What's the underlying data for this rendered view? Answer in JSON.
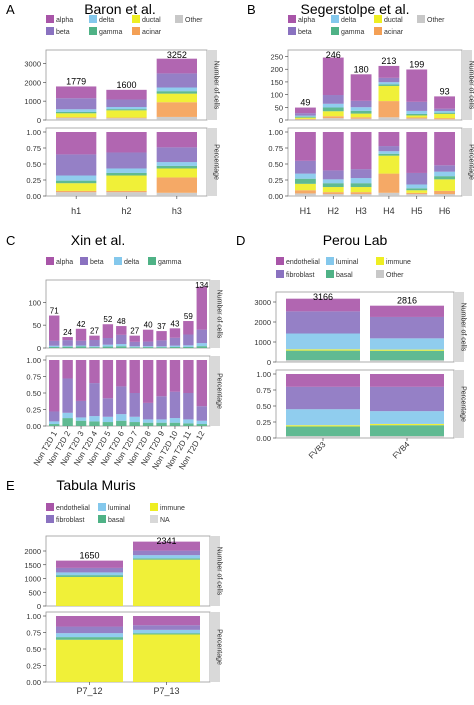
{
  "colors": {
    "alpha": "#a855a8",
    "beta": "#8a72c0",
    "delta": "#84c8ec",
    "gamma": "#4fb286",
    "ductal": "#eeee22",
    "acinar": "#f4a055",
    "other": "#c8c8c8",
    "endothelial": "#a855a8",
    "luminal": "#84c8ec",
    "immune": "#eeee22",
    "fibroblast": "#8a72c0",
    "basal": "#4fb286",
    "na": "#d8d8d8"
  },
  "strip_labels": {
    "count": "Number of cells",
    "percent": "Percentage"
  },
  "chart_data": [
    {
      "letter": "A",
      "type": "bar",
      "title": "Baron et al.",
      "categories": [
        "h1",
        "h2",
        "h3"
      ],
      "totals": [
        1779,
        1600,
        3252
      ],
      "legend": [
        {
          "label": "alpha",
          "key": "alpha"
        },
        {
          "label": "delta",
          "key": "delta"
        },
        {
          "label": "ductal",
          "key": "ductal"
        },
        {
          "label": "Other",
          "key": "other"
        },
        {
          "label": "beta",
          "key": "beta"
        },
        {
          "label": "gamma",
          "key": "gamma"
        },
        {
          "label": "acinar",
          "key": "acinar"
        }
      ],
      "stack_order": [
        "other",
        "acinar",
        "ductal",
        "gamma",
        "delta",
        "beta",
        "alpha"
      ],
      "fractions": [
        {
          "alpha": 0.35,
          "beta": 0.33,
          "delta": 0.08,
          "gamma": 0.04,
          "ductal": 0.12,
          "acinar": 0.02,
          "other": 0.06
        },
        {
          "alpha": 0.32,
          "beta": 0.25,
          "delta": 0.07,
          "gamma": 0.04,
          "ductal": 0.24,
          "acinar": 0.02,
          "other": 0.06
        },
        {
          "alpha": 0.24,
          "beta": 0.23,
          "delta": 0.06,
          "gamma": 0.04,
          "ductal": 0.14,
          "acinar": 0.24,
          "other": 0.05
        }
      ],
      "y_count": {
        "max": 3500,
        "ticks": [
          0,
          1000,
          2000,
          3000
        ]
      },
      "y_percent": {
        "ticks": [
          "0.00",
          "0.25",
          "0.50",
          "0.75",
          "1.00"
        ]
      }
    },
    {
      "letter": "B",
      "type": "bar",
      "title": "Segerstolpe et al.",
      "categories": [
        "H1",
        "H2",
        "H3",
        "H4",
        "H5",
        "H6"
      ],
      "totals": [
        49,
        246,
        180,
        213,
        199,
        93
      ],
      "legend": [
        {
          "label": "alpha",
          "key": "alpha"
        },
        {
          "label": "delta",
          "key": "delta"
        },
        {
          "label": "ductal",
          "key": "ductal"
        },
        {
          "label": "Other",
          "key": "other"
        },
        {
          "label": "beta",
          "key": "beta"
        },
        {
          "label": "gamma",
          "key": "gamma"
        },
        {
          "label": "acinar",
          "key": "acinar"
        }
      ],
      "stack_order": [
        "other",
        "acinar",
        "ductal",
        "gamma",
        "delta",
        "beta",
        "alpha"
      ],
      "fractions": [
        {
          "alpha": 0.45,
          "beta": 0.2,
          "delta": 0.08,
          "gamma": 0.08,
          "ductal": 0.1,
          "acinar": 0.05,
          "other": 0.04
        },
        {
          "alpha": 0.6,
          "beta": 0.14,
          "delta": 0.06,
          "gamma": 0.06,
          "ductal": 0.08,
          "acinar": 0.03,
          "other": 0.03
        },
        {
          "alpha": 0.58,
          "beta": 0.14,
          "delta": 0.08,
          "gamma": 0.06,
          "ductal": 0.08,
          "acinar": 0.03,
          "other": 0.03
        },
        {
          "alpha": 0.22,
          "beta": 0.08,
          "delta": 0.04,
          "gamma": 0.03,
          "ductal": 0.28,
          "acinar": 0.3,
          "other": 0.05
        },
        {
          "alpha": 0.64,
          "beta": 0.18,
          "delta": 0.06,
          "gamma": 0.03,
          "ductal": 0.04,
          "acinar": 0.02,
          "other": 0.03
        },
        {
          "alpha": 0.52,
          "beta": 0.1,
          "delta": 0.07,
          "gamma": 0.05,
          "ductal": 0.18,
          "acinar": 0.05,
          "other": 0.03
        }
      ],
      "y_count": {
        "max": 260,
        "ticks": [
          0,
          50,
          100,
          150,
          200,
          250
        ]
      },
      "y_percent": {
        "ticks": [
          "0.00",
          "0.25",
          "0.50",
          "0.75",
          "1.00"
        ]
      }
    },
    {
      "letter": "C",
      "type": "bar",
      "title": "Xin et al.",
      "categories": [
        "Non T2D 1",
        "Non T2D 2",
        "Non T2D 3",
        "Non T2D 4",
        "Non T2D 5",
        "Non T2D 6",
        "Non T2D 7",
        "Non T2D 8",
        "Non T2D 9",
        "Non T2D 10",
        "Non T2D 11",
        "Non T2D 12"
      ],
      "totals": [
        71,
        24,
        42,
        27,
        52,
        48,
        27,
        40,
        37,
        43,
        59,
        134
      ],
      "legend": [
        {
          "label": "alpha",
          "key": "alpha"
        },
        {
          "label": "beta",
          "key": "beta"
        },
        {
          "label": "delta",
          "key": "delta"
        },
        {
          "label": "gamma",
          "key": "gamma"
        }
      ],
      "stack_order": [
        "gamma",
        "delta",
        "beta",
        "alpha"
      ],
      "fractions": [
        {
          "alpha": 0.78,
          "beta": 0.15,
          "delta": 0.04,
          "gamma": 0.03
        },
        {
          "alpha": 0.28,
          "beta": 0.52,
          "delta": 0.08,
          "gamma": 0.12
        },
        {
          "alpha": 0.62,
          "beta": 0.25,
          "delta": 0.05,
          "gamma": 0.08
        },
        {
          "alpha": 0.35,
          "beta": 0.5,
          "delta": 0.08,
          "gamma": 0.07
        },
        {
          "alpha": 0.58,
          "beta": 0.28,
          "delta": 0.08,
          "gamma": 0.06
        },
        {
          "alpha": 0.4,
          "beta": 0.42,
          "delta": 0.1,
          "gamma": 0.08
        },
        {
          "alpha": 0.5,
          "beta": 0.36,
          "delta": 0.08,
          "gamma": 0.06
        },
        {
          "alpha": 0.65,
          "beta": 0.25,
          "delta": 0.05,
          "gamma": 0.05
        },
        {
          "alpha": 0.55,
          "beta": 0.35,
          "delta": 0.05,
          "gamma": 0.05
        },
        {
          "alpha": 0.48,
          "beta": 0.4,
          "delta": 0.07,
          "gamma": 0.05
        },
        {
          "alpha": 0.5,
          "beta": 0.4,
          "delta": 0.06,
          "gamma": 0.04
        },
        {
          "alpha": 0.7,
          "beta": 0.22,
          "delta": 0.05,
          "gamma": 0.03
        }
      ],
      "y_count": {
        "max": 140,
        "ticks": [
          0,
          50,
          100
        ]
      },
      "y_percent": {
        "ticks": [
          "0.00",
          "0.25",
          "0.50",
          "0.75",
          "1.00"
        ]
      }
    },
    {
      "letter": "D",
      "type": "bar",
      "title": "Perou Lab",
      "categories": [
        "FVB3",
        "FVB4"
      ],
      "totals": [
        3166,
        2816
      ],
      "legend": [
        {
          "label": "endothelial",
          "key": "endothelial"
        },
        {
          "label": "luminal",
          "key": "luminal"
        },
        {
          "label": "immune",
          "key": "immune"
        },
        {
          "label": "fibroblast",
          "key": "fibroblast"
        },
        {
          "label": "basal",
          "key": "basal"
        },
        {
          "label": "Other",
          "key": "other"
        }
      ],
      "stack_order": [
        "other",
        "basal",
        "immune",
        "luminal",
        "fibroblast",
        "endothelial"
      ],
      "fractions": [
        {
          "endothelial": 0.2,
          "fibroblast": 0.35,
          "luminal": 0.25,
          "immune": 0.02,
          "basal": 0.15,
          "other": 0.03
        },
        {
          "endothelial": 0.2,
          "fibroblast": 0.38,
          "luminal": 0.2,
          "immune": 0.02,
          "basal": 0.17,
          "other": 0.03
        }
      ],
      "y_count": {
        "max": 3300,
        "ticks": [
          0,
          1000,
          2000,
          3000
        ]
      },
      "y_percent": {
        "ticks": [
          "0.00",
          "0.25",
          "0.50",
          "0.75",
          "1.00"
        ]
      }
    },
    {
      "letter": "E",
      "type": "bar",
      "title": "Tabula Muris",
      "categories": [
        "P7_12",
        "P7_13"
      ],
      "totals": [
        1650,
        2341
      ],
      "legend": [
        {
          "label": "endothelial",
          "key": "endothelial"
        },
        {
          "label": "luminal",
          "key": "luminal"
        },
        {
          "label": "immune",
          "key": "immune"
        },
        {
          "label": "fibroblast",
          "key": "fibroblast"
        },
        {
          "label": "basal",
          "key": "basal"
        },
        {
          "label": "NA",
          "key": "na"
        }
      ],
      "stack_order": [
        "na",
        "immune",
        "basal",
        "luminal",
        "fibroblast",
        "endothelial"
      ],
      "fractions": [
        {
          "endothelial": 0.16,
          "fibroblast": 0.1,
          "luminal": 0.06,
          "basal": 0.04,
          "immune": 0.64,
          "na": 0.0
        },
        {
          "endothelial": 0.14,
          "fibroblast": 0.07,
          "luminal": 0.05,
          "basal": 0.02,
          "immune": 0.72,
          "na": 0.0
        }
      ],
      "y_count": {
        "max": 2400,
        "ticks": [
          0,
          500,
          1000,
          1500,
          2000
        ]
      },
      "y_percent": {
        "ticks": [
          "0.00",
          "0.25",
          "0.50",
          "0.75",
          "1.00"
        ]
      }
    }
  ]
}
